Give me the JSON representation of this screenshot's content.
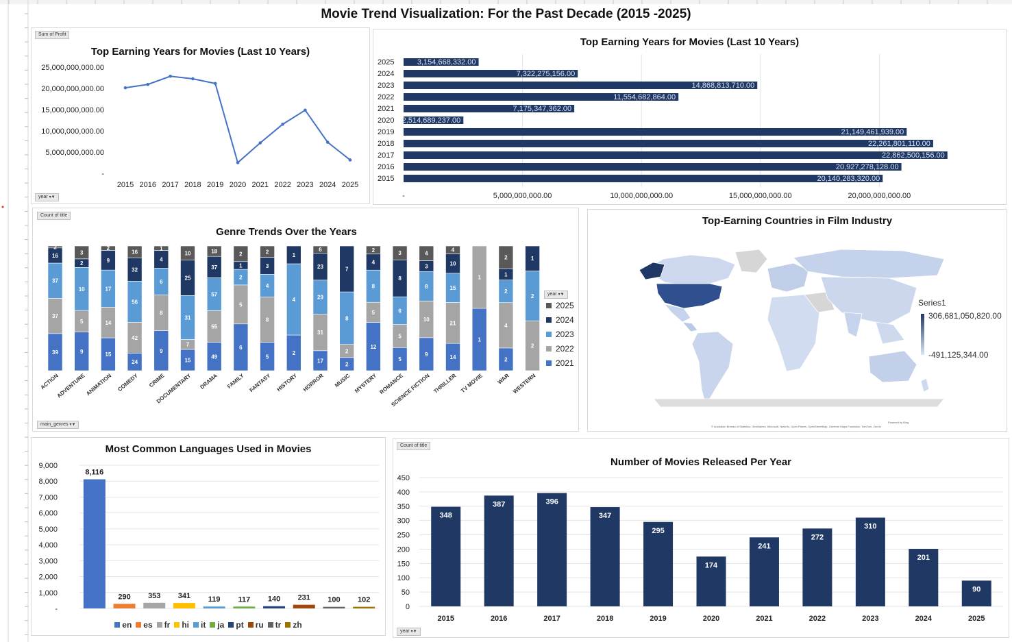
{
  "dashboard": {
    "title": "Movie Trend Visualization: For the Past Decade (2015 -2025)"
  },
  "colors": {
    "navy": "#1f3864",
    "blue": "#4472c4",
    "light_blue": "#5b9bd5",
    "gray": "#a5a5a5",
    "dark_gray": "#595959"
  },
  "profit_line": {
    "title": "Top Earning Years for Movies (Last 10 Years)",
    "filter_top": "Sum of Profit",
    "filter_bottom": "year",
    "chart_data": {
      "type": "line",
      "title": "Top Earning Years for Movies (Last 10 Years)",
      "x": [
        "2015",
        "2016",
        "2017",
        "2018",
        "2019",
        "2020",
        "2021",
        "2022",
        "2023",
        "2024",
        "2025"
      ],
      "values": [
        20140283320,
        20927278128,
        22862500156,
        22261801110,
        21149461939,
        2514689237,
        7175347362,
        11554682864,
        14868813710,
        7322275156,
        3154668332
      ],
      "ylim": [
        0,
        25000000000
      ],
      "yticks": [
        "-",
        "5,000,000,000.00",
        "10,000,000,000.00",
        "15,000,000,000.00",
        "20,000,000,000.00",
        "25,000,000,000.00"
      ],
      "grid": false
    }
  },
  "profit_bar": {
    "title": "Top Earning Years for Movies (Last 10 Years)",
    "chart_data": {
      "type": "bar",
      "orientation": "horizontal",
      "title": "Top Earning Years for Movies (Last 10 Years)",
      "categories": [
        "2025",
        "2024",
        "2023",
        "2022",
        "2021",
        "2020",
        "2019",
        "2018",
        "2017",
        "2016",
        "2015"
      ],
      "values": [
        3154668332,
        7322275156,
        14868813710,
        11554682864,
        7175347362,
        2514689237,
        21149461939,
        22261801110,
        22862500156,
        20927278128,
        20140283320
      ],
      "labels": [
        "3,154,668,332.00",
        "7,322,275,156.00",
        "14,868,813,710.00",
        "11,554,682,864.00",
        "7,175,347,362.00",
        "2,514,689,237.00",
        "21,149,461,939.00",
        "22,261,801,110.00",
        "22,862,500,156.00",
        "20,927,278,128.00",
        "20,140,283,320.00"
      ],
      "xlim": [
        0,
        25000000000
      ],
      "xticks": [
        "-",
        "5,000,000,000.00",
        "10,000,000,000.00",
        "15,000,000,000.00",
        "20,000,000,000.00"
      ],
      "grid": true
    }
  },
  "genre": {
    "title": "Genre Trends Over the Years",
    "filter_top": "Count of title",
    "filter_bottom": "main_genres",
    "legend_filter": "year",
    "chart_data": {
      "type": "bar",
      "stacked": "percent",
      "title": "Genre Trends Over the Years",
      "categories": [
        "ACTION",
        "ADVENTURE",
        "ANIMATION",
        "COMEDY",
        "CRIME",
        "DOCUMENTARY",
        "DRAMA",
        "FAMILY",
        "FANTASY",
        "HISTORY",
        "HORROR",
        "MUSIC",
        "MYSTERY",
        "ROMANCE",
        "SCIENCE FICTION",
        "THRILLER",
        "TV MOVIE",
        "WAR",
        "WESTERN"
      ],
      "series": [
        {
          "name": "2021",
          "values": [
            39,
            9,
            15,
            24,
            9,
            15,
            49,
            6,
            5,
            2,
            17,
            2,
            12,
            5,
            9,
            14,
            1,
            2,
            0
          ]
        },
        {
          "name": "2022",
          "values": [
            37,
            5,
            14,
            42,
            8,
            7,
            55,
            5,
            8,
            0,
            31,
            2,
            5,
            5,
            10,
            21,
            1,
            4,
            2
          ]
        },
        {
          "name": "2023",
          "values": [
            37,
            10,
            17,
            56,
            6,
            31,
            57,
            2,
            4,
            4,
            29,
            8,
            8,
            6,
            8,
            15,
            0,
            2,
            2
          ]
        },
        {
          "name": "2024",
          "values": [
            16,
            2,
            9,
            32,
            4,
            25,
            37,
            1,
            3,
            1,
            23,
            7,
            4,
            8,
            3,
            10,
            0,
            1,
            1
          ]
        },
        {
          "name": "2025",
          "values": [
            2,
            3,
            2,
            16,
            1,
            10,
            18,
            2,
            2,
            0,
            6,
            0,
            2,
            3,
            4,
            4,
            0,
            2,
            0
          ]
        }
      ],
      "legend": "right"
    }
  },
  "map": {
    "title": "Top-Earning Countries in Film Industry",
    "legend_title": "Series1",
    "legend_max": "306,681,050,820.00",
    "legend_min": "-491,125,344.00",
    "powered": "Powered by Bing",
    "attribution": "© Australian Bureau of Statistics, GeoNames, Microsoft, Navinfo, Open Places, OpenStreetMap, Overture Maps Fundation, TomTom, Zenrin"
  },
  "languages": {
    "title": "Most Common Languages Used in Movies",
    "chart_data": {
      "type": "bar",
      "title": "Most Common Languages Used in Movies",
      "categories": [
        "en",
        "es",
        "fr",
        "hi",
        "it",
        "ja",
        "pt",
        "ru",
        "tr",
        "zh"
      ],
      "values": [
        8116,
        290,
        353,
        341,
        119,
        117,
        140,
        231,
        100,
        102
      ],
      "labels": [
        "8,116",
        "290",
        "353",
        "341",
        "119",
        "117",
        "140",
        "231",
        "100",
        "102"
      ],
      "colors": [
        "#4472c4",
        "#ed7d31",
        "#a5a5a5",
        "#ffc000",
        "#5b9bd5",
        "#70ad47",
        "#264478",
        "#9e480e",
        "#636363",
        "#997300"
      ],
      "ylim": [
        0,
        9000
      ],
      "yticks": [
        "-",
        "1,000",
        "2,000",
        "3,000",
        "4,000",
        "5,000",
        "6,000",
        "7,000",
        "8,000",
        "9,000"
      ],
      "legend": "bottom",
      "grid": true
    }
  },
  "releases": {
    "title": "Number of Movies Released Per Year",
    "filter_top": "Count of title",
    "filter_bottom": "year",
    "chart_data": {
      "type": "bar",
      "title": "Number of Movies Released Per Year",
      "categories": [
        "2015",
        "2016",
        "2017",
        "2018",
        "2019",
        "2020",
        "2021",
        "2022",
        "2023",
        "2024",
        "2025"
      ],
      "values": [
        348,
        387,
        396,
        347,
        295,
        174,
        241,
        272,
        310,
        201,
        90
      ],
      "ylim": [
        0,
        450
      ],
      "yticks": [
        "0",
        "50",
        "100",
        "150",
        "200",
        "250",
        "300",
        "350",
        "400",
        "450"
      ],
      "grid": true
    }
  }
}
